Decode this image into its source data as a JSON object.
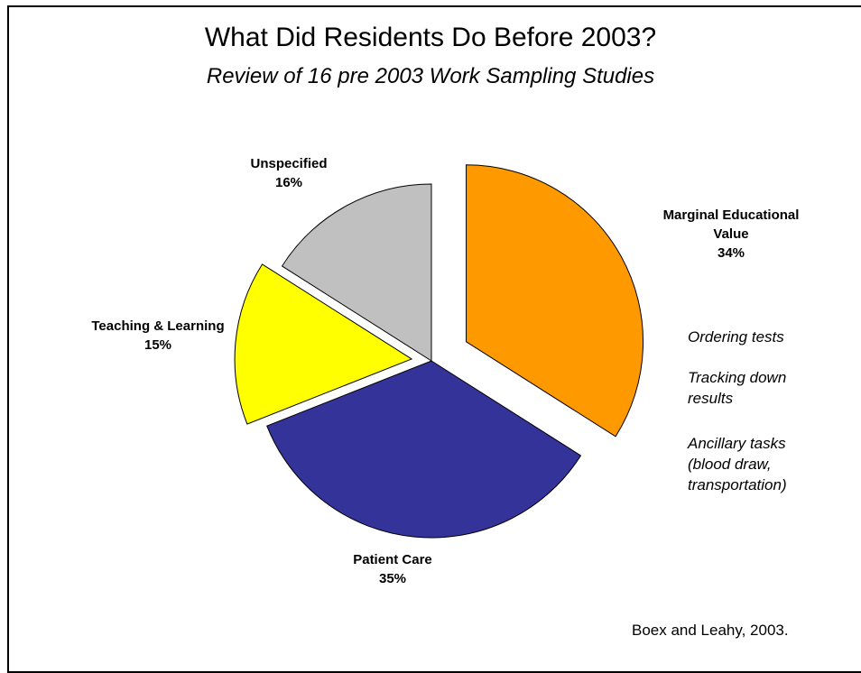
{
  "slide": {
    "title": "What Did Residents Do Before 2003?",
    "subtitle": "Review of 16 pre 2003 Work Sampling Studies",
    "source": "Boex and Leahy, 2003."
  },
  "chart_data": {
    "type": "pie",
    "slices": [
      {
        "label_lines": [
          "Marginal Educational",
          "Value"
        ],
        "value": 34,
        "pct_label": "34%",
        "color": "#FF9900",
        "exploded": true
      },
      {
        "label_lines": [
          "Patient Care"
        ],
        "value": 35,
        "pct_label": "35%",
        "color": "#333399",
        "exploded": false
      },
      {
        "label_lines": [
          "Teaching & Learning"
        ],
        "value": 15,
        "pct_label": "15%",
        "color": "#FFFF00",
        "exploded": true
      },
      {
        "label_lines": [
          "Unspecified"
        ],
        "value": 16,
        "pct_label": "16%",
        "color": "#C0C0C0",
        "exploded": false
      }
    ]
  },
  "notes": {
    "ordering": "Ordering tests",
    "tracking": [
      "Tracking down",
      "results"
    ],
    "ancillary": [
      "Ancillary tasks",
      "(blood draw,",
      "transportation)"
    ]
  }
}
